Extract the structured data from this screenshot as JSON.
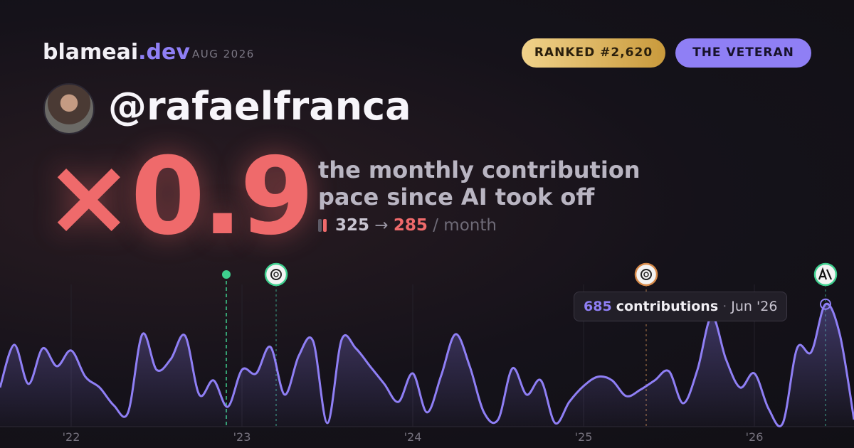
{
  "brand": {
    "name": "blameai",
    "tld": ".dev",
    "date": "AUG 2026"
  },
  "badges": [
    "RANKED #2,620",
    "THE VETERAN"
  ],
  "handle": "@rafaelfranca",
  "multiplier": "×0.9",
  "description": [
    "the monthly contribution",
    "pace since AI took off"
  ],
  "pace": {
    "before": "325",
    "arrow": "→",
    "after": "285",
    "unit": "/ month"
  },
  "chart_data": {
    "type": "line",
    "categories": [
      null,
      null,
      null,
      null,
      null,
      "'22",
      null,
      null,
      null,
      null,
      null,
      null,
      null,
      null,
      null,
      null,
      null,
      "'23",
      null,
      null,
      null,
      null,
      null,
      null,
      null,
      null,
      null,
      null,
      null,
      "'24",
      null,
      null,
      null,
      null,
      null,
      null,
      null,
      null,
      null,
      null,
      null,
      "'25",
      null,
      null,
      null,
      null,
      null,
      null,
      null,
      null,
      null,
      null,
      null,
      "'26",
      null,
      null,
      null,
      null,
      null,
      null,
      null
    ],
    "values": [
      219,
      458,
      239,
      438,
      338,
      426,
      279,
      219,
      119,
      80,
      517,
      318,
      378,
      509,
      179,
      259,
      111,
      318,
      298,
      446,
      179,
      398,
      478,
      20,
      486,
      438,
      338,
      239,
      139,
      298,
      80,
      287,
      517,
      338,
      80,
      40,
      326,
      179,
      259,
      20,
      139,
      227,
      279,
      259,
      171,
      207,
      259,
      310,
      131,
      318,
      617,
      378,
      219,
      298,
      100,
      20,
      438,
      418,
      685,
      517,
      40
    ],
    "color": "#8f7ff5",
    "ylim": [
      0,
      700
    ],
    "tooltip": {
      "unit": "contributions",
      "date": "Jun '26"
    }
  }
}
